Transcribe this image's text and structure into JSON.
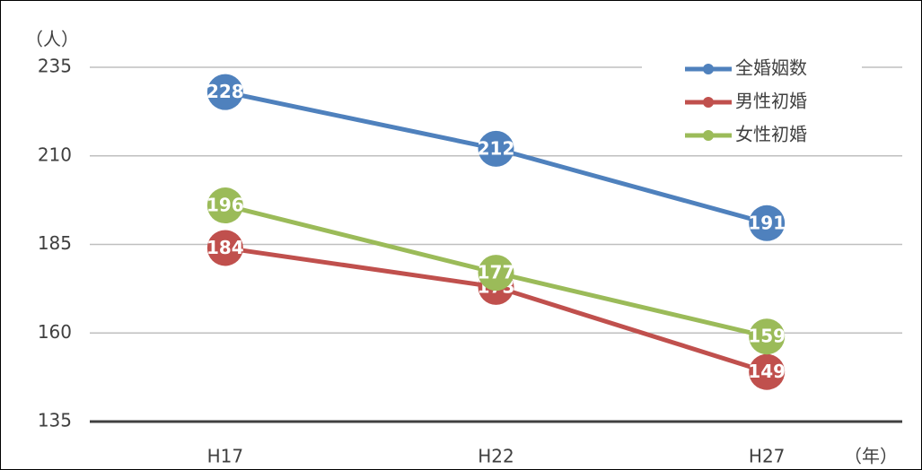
{
  "chart_data": {
    "type": "line",
    "y_axis_label": "（人）",
    "x_axis_label": "（年）",
    "categories": [
      "H17",
      "H22",
      "H27"
    ],
    "series": [
      {
        "name": "全婚姻数",
        "color": "#4f81bd",
        "values": [
          228,
          212,
          191
        ]
      },
      {
        "name": "男性初婚",
        "color": "#c0504d",
        "values": [
          184,
          173,
          149
        ]
      },
      {
        "name": "女性初婚",
        "color": "#9bbb59",
        "values": [
          196,
          177,
          159
        ]
      }
    ],
    "ylim": [
      135,
      235
    ],
    "yticks": [
      135,
      160,
      185,
      210,
      235
    ],
    "grid": true,
    "legend": "upper right"
  }
}
